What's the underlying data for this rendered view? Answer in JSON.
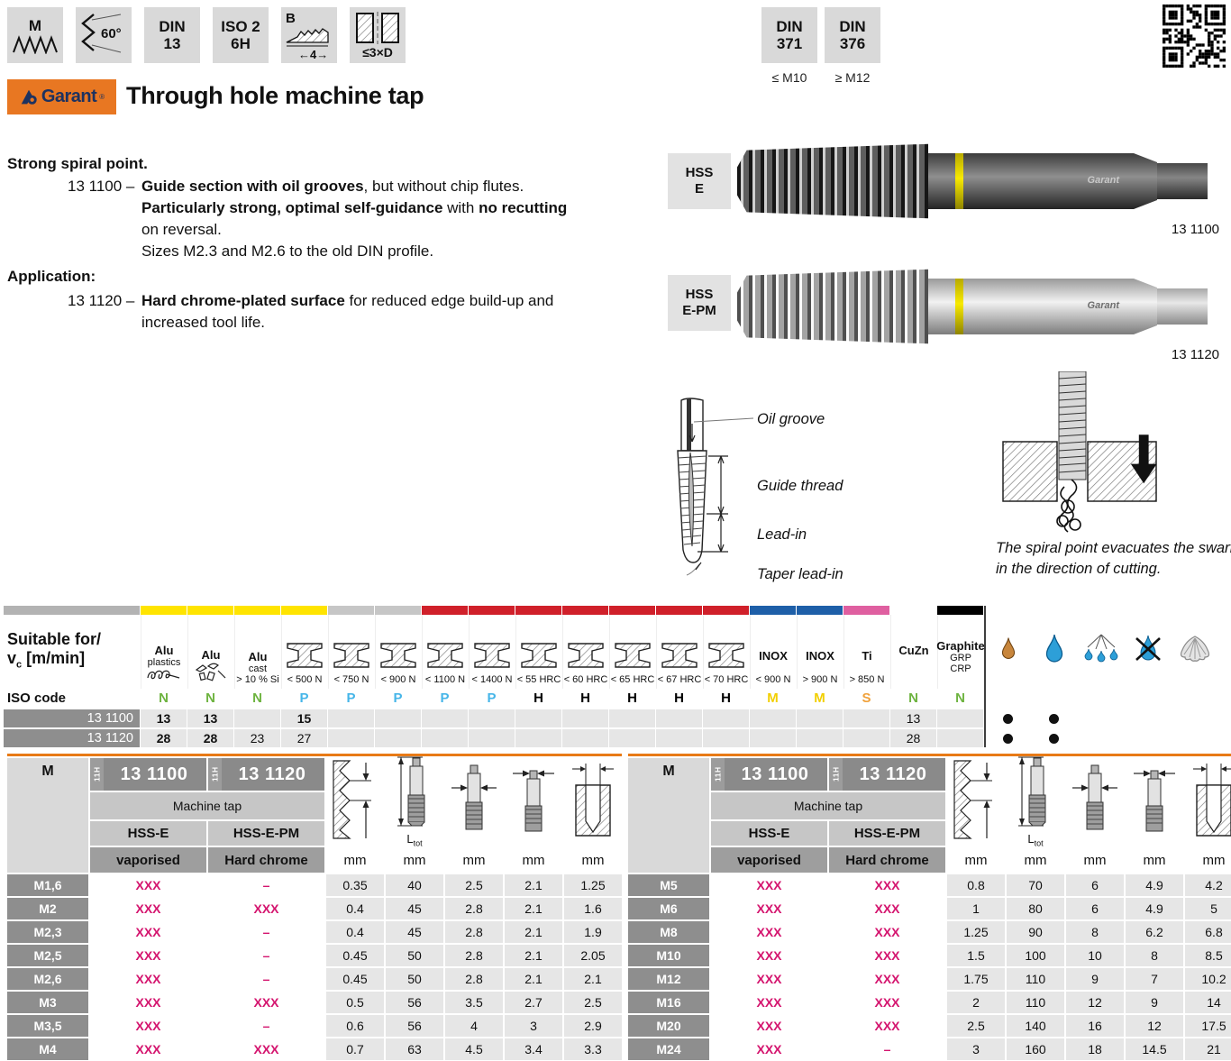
{
  "top_icons": [
    {
      "id": "thread-m",
      "label": "M"
    },
    {
      "id": "angle",
      "label": "60°"
    },
    {
      "id": "din13",
      "line1": "DIN",
      "line2": "13"
    },
    {
      "id": "iso2",
      "line1": "ISO 2",
      "line2": "6H"
    },
    {
      "id": "chamfer",
      "label": "B",
      "dim": "4"
    },
    {
      "id": "depth",
      "label": "≤3×D"
    }
  ],
  "din_boxes": [
    {
      "line1": "DIN",
      "line2": "371",
      "note": "≤ M10"
    },
    {
      "line1": "DIN",
      "line2": "376",
      "note": "≥ M12"
    }
  ],
  "brand": {
    "name": "Garant",
    "reg": "®"
  },
  "title": "Through hole machine tap",
  "description": {
    "heading": "Strong spiral point.",
    "item1_code": "13 1100 –",
    "item1_b1": "Guide section with oil grooves",
    "item1_r1": ", but without chip flutes.",
    "item1_b2": "Particularly strong, optimal self-guidance",
    "item1_r2": " with ",
    "item1_b3": "no recutting",
    "item1_r3": "on reversal.",
    "item1_r4": "Sizes M2.3 and M2.6 to the old DIN profile.",
    "app_heading": "Application:",
    "item2_code": "13 1120 –",
    "item2_b1": "Hard chrome-plated surface",
    "item2_r1": " for reduced edge build-up and",
    "item2_r2": "increased tool life."
  },
  "products": [
    {
      "grade_l1": "HSS",
      "grade_l2": "E",
      "article": "13 1100",
      "brand_mark": "Garant"
    },
    {
      "grade_l1": "HSS",
      "grade_l2": "E-PM",
      "article": "13 1120",
      "brand_mark": "Garant"
    }
  ],
  "tap_diagram": {
    "labels": [
      "Oil groove",
      "Guide thread",
      "Lead-in",
      "Taper lead-in"
    ],
    "caption_l1": "The spiral point evacuates the swarf",
    "caption_l2": "in the direction of cutting."
  },
  "suitability": {
    "title_l1": "Suitable for/",
    "title_v": "v",
    "title_sub": "c",
    "title_rest": " [m/min]",
    "iso_label": "ISO code",
    "rows": [
      {
        "code": "13 1100"
      },
      {
        "code": "13 1120"
      }
    ],
    "columns": [
      {
        "kind": "alu-plastics",
        "strip": "#ffe400",
        "l1": "Alu",
        "l2": "plastics",
        "iso": "N",
        "iso_color": "#6db33f",
        "v1": "13",
        "b1": true,
        "v2": "28",
        "b2": true
      },
      {
        "kind": "alu",
        "strip": "#ffe400",
        "l1": "Alu",
        "iso": "N",
        "iso_color": "#6db33f",
        "v1": "13",
        "b1": true,
        "v2": "28",
        "b2": true
      },
      {
        "kind": "alu-cast",
        "strip": "#ffe400",
        "l1": "Alu",
        "l2": "cast",
        "l3": "> 10 % Si",
        "iso": "N",
        "iso_color": "#6db33f",
        "v1": "",
        "v2": "23"
      },
      {
        "kind": "steel",
        "strip": "#ffe400",
        "l3": "< 500 N",
        "iso": "P",
        "iso_color": "#45b5e8",
        "v1": "15",
        "b1": true,
        "v2": "27"
      },
      {
        "kind": "steel",
        "strip": "#c6c6c6",
        "l3": "< 750 N",
        "iso": "P",
        "iso_color": "#45b5e8"
      },
      {
        "kind": "steel",
        "strip": "#c6c6c6",
        "l3": "< 900 N",
        "iso": "P",
        "iso_color": "#45b5e8"
      },
      {
        "kind": "steel",
        "strip": "#d0202a",
        "l3": "< 1100 N",
        "iso": "P",
        "iso_color": "#45b5e8"
      },
      {
        "kind": "steel",
        "strip": "#d0202a",
        "l3": "< 1400 N",
        "iso": "P",
        "iso_color": "#45b5e8"
      },
      {
        "kind": "steel",
        "strip": "#d0202a",
        "l3": "< 55 HRC",
        "iso": "H",
        "iso_color": "#000000"
      },
      {
        "kind": "steel",
        "strip": "#d0202a",
        "l3": "< 60 HRC",
        "iso": "H",
        "iso_color": "#000000"
      },
      {
        "kind": "steel",
        "strip": "#d0202a",
        "l3": "< 65 HRC",
        "iso": "H",
        "iso_color": "#000000"
      },
      {
        "kind": "steel",
        "strip": "#d0202a",
        "l3": "< 67 HRC",
        "iso": "H",
        "iso_color": "#000000"
      },
      {
        "kind": "steel",
        "strip": "#d0202a",
        "l3": "< 70 HRC",
        "iso": "H",
        "iso_color": "#000000"
      },
      {
        "kind": "inox",
        "strip": "#1e5fa8",
        "l1": "INOX",
        "l3": "< 900 N",
        "iso": "M",
        "iso_color": "#f2cf00"
      },
      {
        "kind": "inox",
        "strip": "#1e5fa8",
        "l1": "INOX",
        "l3": "> 900 N",
        "iso": "M",
        "iso_color": "#f2cf00"
      },
      {
        "kind": "ti",
        "strip": "#df5fa0",
        "l1": "Ti",
        "l3": "> 850 N",
        "iso": "S",
        "iso_color": "#f0a13a"
      },
      {
        "kind": "cuzn",
        "strip": "#ffffff",
        "l1": "CuZn",
        "iso": "N",
        "iso_color": "#6db33f",
        "v1": "13",
        "v2": "28"
      },
      {
        "kind": "graphite",
        "strip": "#000000",
        "l1": "Graphite",
        "l2": "GRP",
        "l3": "CRP",
        "iso": "N",
        "iso_color": "#6db33f"
      }
    ],
    "coolant": [
      {
        "icon": "oil-drop",
        "d1": true,
        "d2": true
      },
      {
        "icon": "emulsion-drop",
        "d1": true,
        "d2": true
      },
      {
        "icon": "spray-lube",
        "d1": false,
        "d2": false
      },
      {
        "icon": "no-coolant",
        "d1": false,
        "d2": false
      },
      {
        "icon": "air-blast",
        "d1": false,
        "d2": false
      }
    ]
  },
  "size_tables": {
    "m_label": "M",
    "tab": "11H",
    "article1": "13 1100",
    "article2": "13 1120",
    "group": "Machine tap",
    "grade1": "HSS-E",
    "grade2": "HSS-E-PM",
    "surf1": "vaporised",
    "surf2": "Hard chrome",
    "unit": "mm",
    "ltot": "L",
    "ltot_sub": "tot",
    "left_rows": [
      {
        "m": "M1,6",
        "a1": "XXX",
        "a2": "–",
        "vals": [
          "0.35",
          "40",
          "2.5",
          "2.1",
          "1.25"
        ]
      },
      {
        "m": "M2",
        "a1": "XXX",
        "a2": "XXX",
        "vals": [
          "0.4",
          "45",
          "2.8",
          "2.1",
          "1.6"
        ]
      },
      {
        "m": "M2,3",
        "a1": "XXX",
        "a2": "–",
        "vals": [
          "0.4",
          "45",
          "2.8",
          "2.1",
          "1.9"
        ]
      },
      {
        "m": "M2,5",
        "a1": "XXX",
        "a2": "–",
        "vals": [
          "0.45",
          "50",
          "2.8",
          "2.1",
          "2.05"
        ]
      },
      {
        "m": "M2,6",
        "a1": "XXX",
        "a2": "–",
        "vals": [
          "0.45",
          "50",
          "2.8",
          "2.1",
          "2.1"
        ]
      },
      {
        "m": "M3",
        "a1": "XXX",
        "a2": "XXX",
        "vals": [
          "0.5",
          "56",
          "3.5",
          "2.7",
          "2.5"
        ]
      },
      {
        "m": "M3,5",
        "a1": "XXX",
        "a2": "–",
        "vals": [
          "0.6",
          "56",
          "4",
          "3",
          "2.9"
        ]
      },
      {
        "m": "M4",
        "a1": "XXX",
        "a2": "XXX",
        "vals": [
          "0.7",
          "63",
          "4.5",
          "3.4",
          "3.3"
        ]
      }
    ],
    "right_rows": [
      {
        "m": "M5",
        "a1": "XXX",
        "a2": "XXX",
        "vals": [
          "0.8",
          "70",
          "6",
          "4.9",
          "4.2"
        ]
      },
      {
        "m": "M6",
        "a1": "XXX",
        "a2": "XXX",
        "vals": [
          "1",
          "80",
          "6",
          "4.9",
          "5"
        ]
      },
      {
        "m": "M8",
        "a1": "XXX",
        "a2": "XXX",
        "vals": [
          "1.25",
          "90",
          "8",
          "6.2",
          "6.8"
        ]
      },
      {
        "m": "M10",
        "a1": "XXX",
        "a2": "XXX",
        "vals": [
          "1.5",
          "100",
          "10",
          "8",
          "8.5"
        ]
      },
      {
        "m": "M12",
        "a1": "XXX",
        "a2": "XXX",
        "vals": [
          "1.75",
          "110",
          "9",
          "7",
          "10.2"
        ]
      },
      {
        "m": "M16",
        "a1": "XXX",
        "a2": "XXX",
        "vals": [
          "2",
          "110",
          "12",
          "9",
          "14"
        ]
      },
      {
        "m": "M20",
        "a1": "XXX",
        "a2": "XXX",
        "vals": [
          "2.5",
          "140",
          "16",
          "12",
          "17.5"
        ]
      },
      {
        "m": "M24",
        "a1": "XXX",
        "a2": "–",
        "vals": [
          "3",
          "160",
          "18",
          "14.5",
          "21"
        ]
      }
    ]
  }
}
